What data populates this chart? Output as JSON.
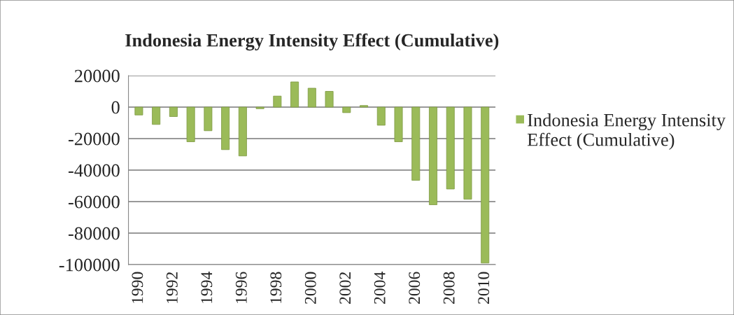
{
  "chart_data": {
    "type": "bar",
    "title": "Indonesia Energy Intensity Effect (Cumulative)",
    "categories": [
      "1990",
      null,
      "1992",
      null,
      "1994",
      null,
      "1996",
      null,
      "1998",
      null,
      "2000",
      null,
      "2002",
      null,
      "2004",
      null,
      "2006",
      null,
      "2008",
      null,
      "2010"
    ],
    "series": [
      {
        "name": "Indonesia Energy Intensity Effect (Cumulative)",
        "color": "#9bbb59",
        "values": [
          -5000,
          -11000,
          -6000,
          -22000,
          -15000,
          -27000,
          -31000,
          -1000,
          7000,
          16000,
          12000,
          10000,
          -3500,
          1000,
          -11500,
          -22000,
          -46500,
          -62000,
          -52000,
          -58500,
          -99000
        ]
      }
    ],
    "ylim": [
      -100000,
      20000
    ],
    "yticks": [
      -100000,
      -80000,
      -60000,
      -40000,
      -20000,
      0,
      20000
    ],
    "grid": "y",
    "legend": "right"
  }
}
